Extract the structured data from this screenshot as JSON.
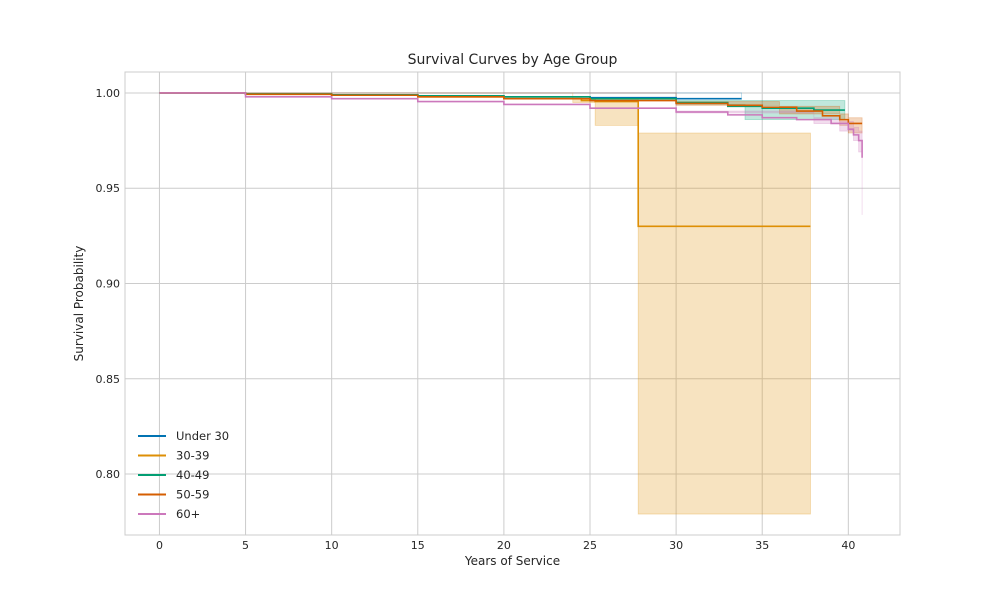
{
  "chart_data": {
    "type": "line",
    "title": "Survival Curves by Age Group",
    "xlabel": "Years of Service",
    "ylabel": "Survival Probability",
    "xlim": [
      -2,
      43
    ],
    "ylim": [
      0.768,
      1.011
    ],
    "xticks": [
      0,
      5,
      10,
      15,
      20,
      25,
      30,
      35,
      40
    ],
    "yticks": [
      0.8,
      0.85,
      0.9,
      0.95,
      1.0
    ],
    "ytick_labels": [
      "0.80",
      "0.85",
      "0.90",
      "0.95",
      "1.00"
    ],
    "grid": true,
    "legend_position": "lower-left",
    "series": [
      {
        "name": "Under 30",
        "color": "#0173b2",
        "points": [
          [
            0,
            1.0
          ],
          [
            5,
            0.9995
          ],
          [
            10,
            0.999
          ],
          [
            15,
            0.9985
          ],
          [
            20,
            0.998
          ],
          [
            25,
            0.9975
          ],
          [
            30,
            0.997
          ],
          [
            33.8,
            0.997
          ]
        ],
        "ci": [
          [
            0,
            1.0,
            1.0
          ],
          [
            33.8,
            0.9965,
            0.9975
          ]
        ]
      },
      {
        "name": "30-39",
        "color": "#de8f05",
        "points": [
          [
            0,
            1.0
          ],
          [
            5,
            0.9995
          ],
          [
            10,
            0.999
          ],
          [
            15,
            0.998
          ],
          [
            20,
            0.997
          ],
          [
            24.5,
            0.996
          ],
          [
            25.3,
            0.9955
          ],
          [
            27.8,
            0.9955
          ],
          [
            27.8,
            0.93
          ],
          [
            37.8,
            0.93
          ]
        ],
        "ci": [
          [
            0,
            1.0,
            1.0
          ],
          [
            24,
            0.995,
            0.997
          ],
          [
            25.3,
            0.983,
            0.997
          ],
          [
            27.8,
            0.779,
            0.979
          ],
          [
            37.8,
            0.779,
            0.979
          ]
        ]
      },
      {
        "name": "40-49",
        "color": "#029e73",
        "points": [
          [
            0,
            1.0
          ],
          [
            5,
            0.9995
          ],
          [
            10,
            0.999
          ],
          [
            15,
            0.9985
          ],
          [
            20,
            0.998
          ],
          [
            25,
            0.997
          ],
          [
            30,
            0.995
          ],
          [
            33,
            0.993
          ],
          [
            35,
            0.992
          ],
          [
            38,
            0.991
          ],
          [
            39.8,
            0.991
          ]
        ],
        "ci": [
          [
            0,
            1.0,
            1.0
          ],
          [
            30,
            0.994,
            0.996
          ],
          [
            34,
            0.986,
            0.996
          ],
          [
            39.8,
            0.986,
            0.994
          ]
        ]
      },
      {
        "name": "50-59",
        "color": "#d55e00",
        "points": [
          [
            0,
            1.0
          ],
          [
            5,
            0.9993
          ],
          [
            10,
            0.9988
          ],
          [
            15,
            0.998
          ],
          [
            20,
            0.997
          ],
          [
            25,
            0.996
          ],
          [
            30,
            0.9945
          ],
          [
            33,
            0.9935
          ],
          [
            35,
            0.9925
          ],
          [
            37,
            0.9905
          ],
          [
            38.5,
            0.988
          ],
          [
            39.5,
            0.986
          ],
          [
            40,
            0.984
          ],
          [
            40.8,
            0.984
          ]
        ],
        "ci": [
          [
            0,
            1.0,
            1.0
          ],
          [
            30,
            0.9935,
            0.9955
          ],
          [
            36,
            0.989,
            0.993
          ],
          [
            39.5,
            0.983,
            0.989
          ],
          [
            40,
            0.979,
            0.987
          ],
          [
            40.8,
            0.979,
            0.987
          ]
        ]
      },
      {
        "name": "60+",
        "color": "#cc78bc",
        "points": [
          [
            0,
            1.0
          ],
          [
            5,
            0.998
          ],
          [
            10,
            0.997
          ],
          [
            15,
            0.9955
          ],
          [
            20,
            0.994
          ],
          [
            25,
            0.992
          ],
          [
            30,
            0.99
          ],
          [
            33,
            0.9885
          ],
          [
            35,
            0.987
          ],
          [
            37,
            0.986
          ],
          [
            39,
            0.984
          ],
          [
            40,
            0.981
          ],
          [
            40.3,
            0.978
          ],
          [
            40.6,
            0.975
          ],
          [
            40.8,
            0.966
          ]
        ],
        "ci": [
          [
            0,
            1.0,
            1.0
          ],
          [
            30,
            0.9895,
            0.9905
          ],
          [
            38,
            0.984,
            0.987
          ],
          [
            39.5,
            0.98,
            0.985
          ],
          [
            40.3,
            0.975,
            0.982
          ],
          [
            40.6,
            0.969,
            0.98
          ],
          [
            40.8,
            0.936,
            0.975
          ]
        ]
      }
    ]
  }
}
